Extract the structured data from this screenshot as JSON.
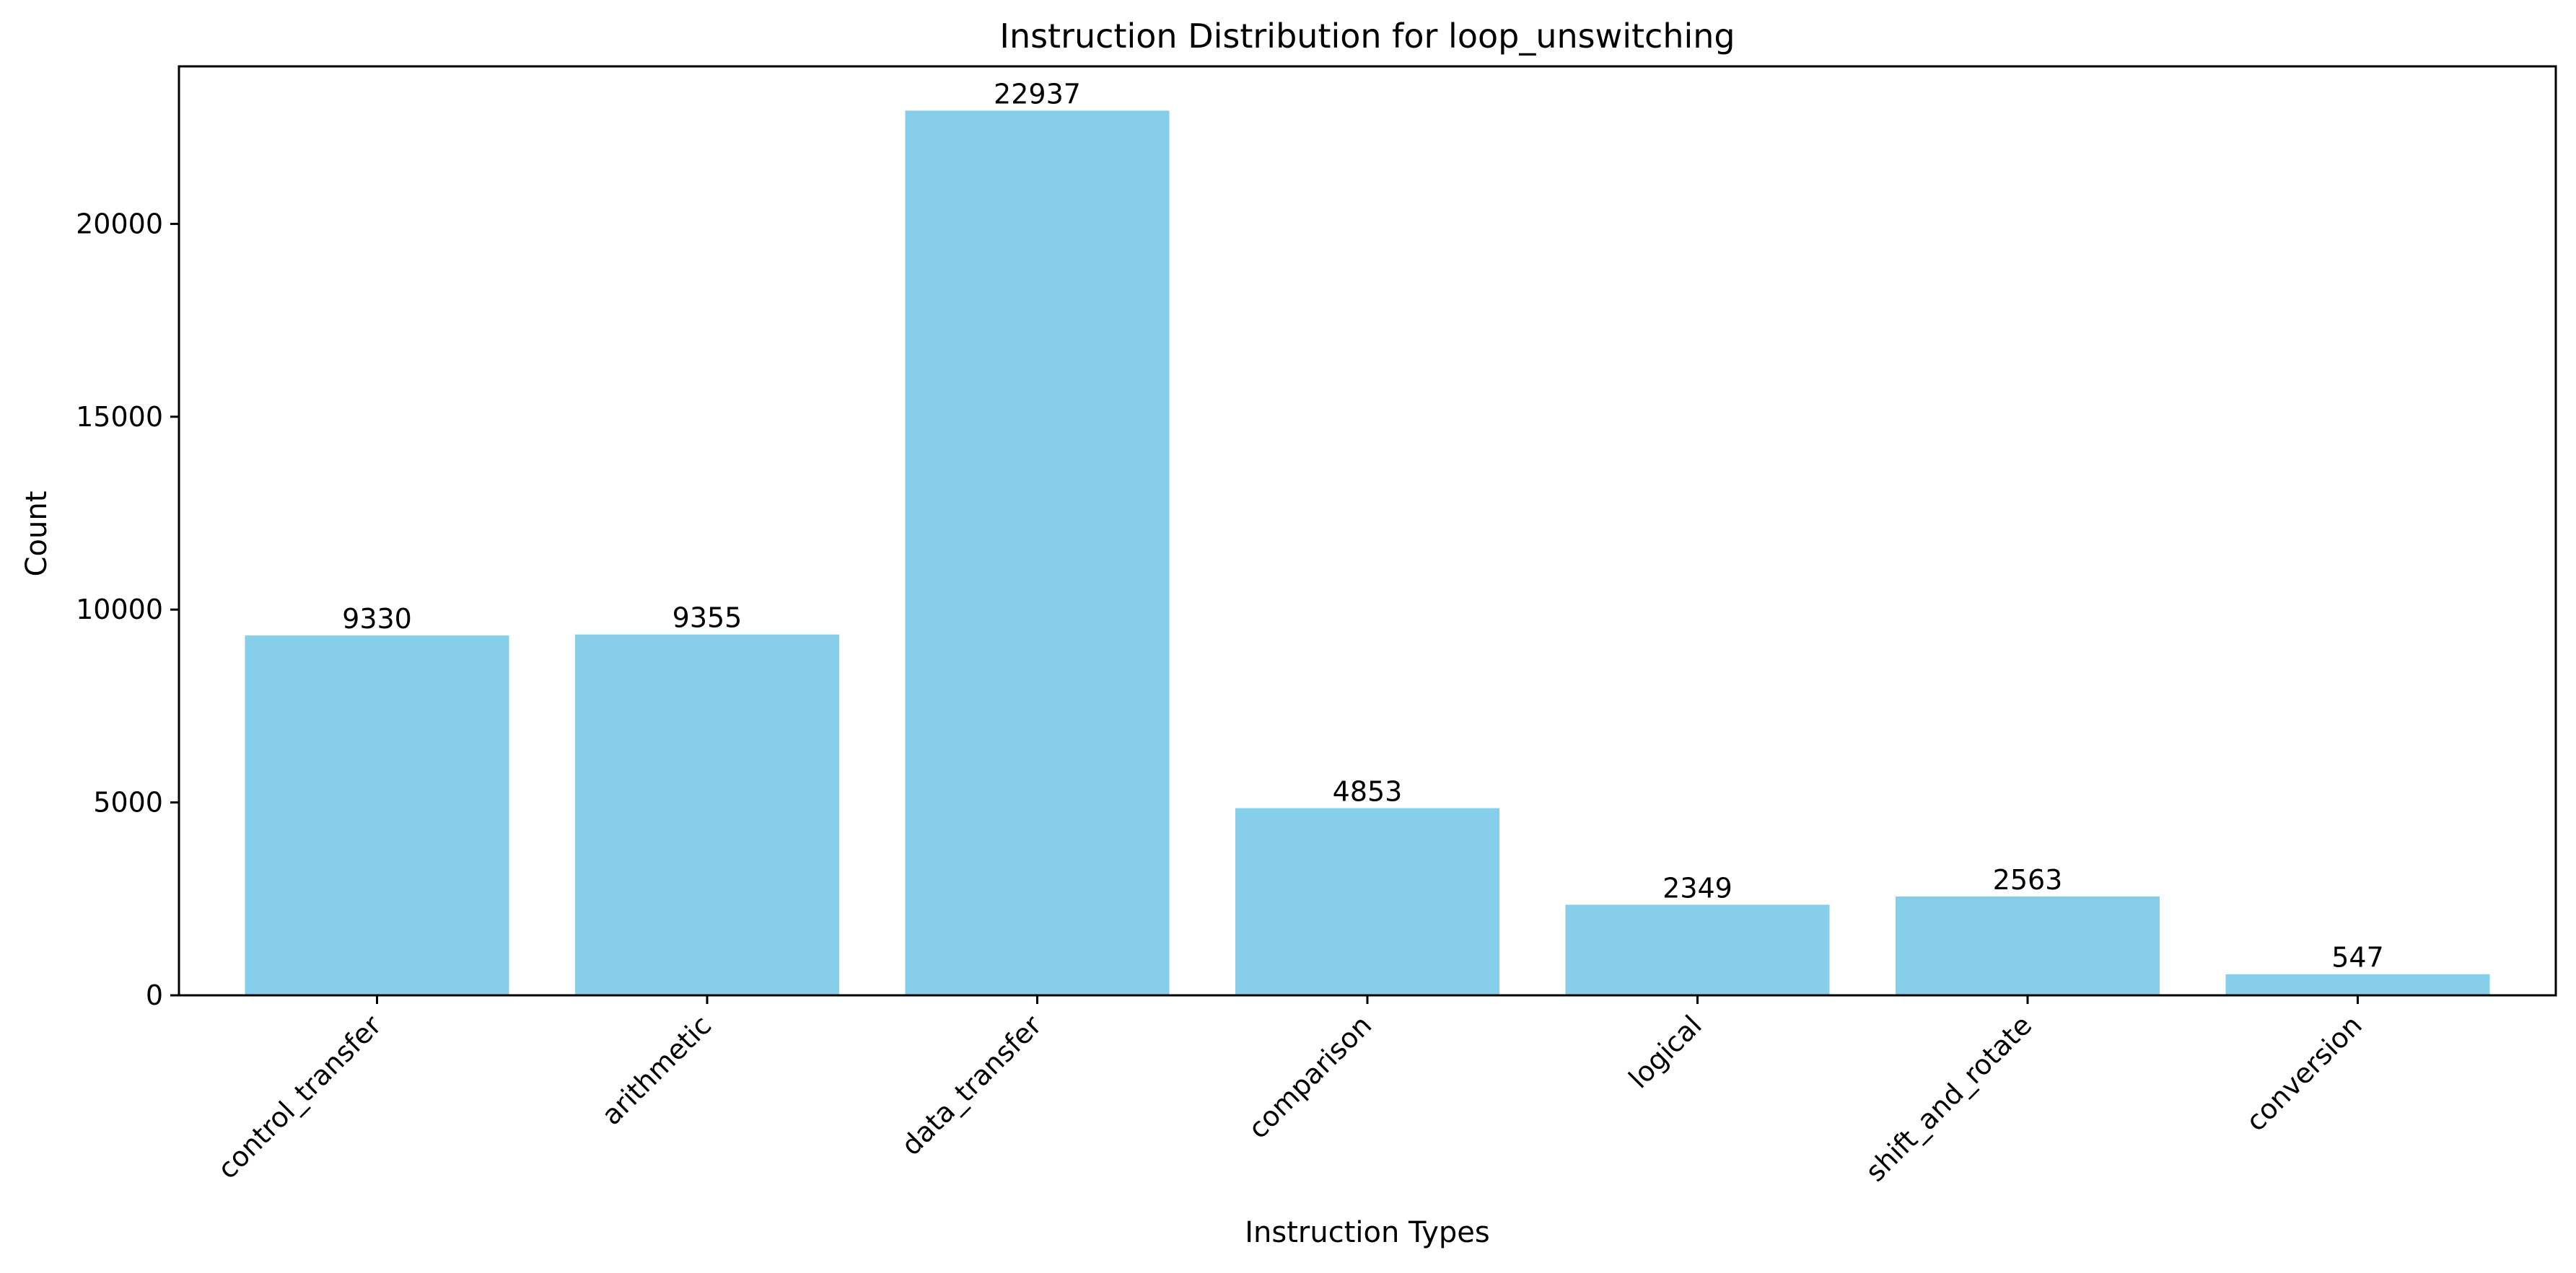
{
  "chart_data": {
    "type": "bar",
    "title": "Instruction Distribution for loop_unswitching",
    "xlabel": "Instruction Types",
    "ylabel": "Count",
    "categories": [
      "control_transfer",
      "arithmetic",
      "data_transfer",
      "comparison",
      "logical",
      "shift_and_rotate",
      "conversion"
    ],
    "values": [
      9330,
      9355,
      22937,
      4853,
      2349,
      2563,
      547
    ],
    "ylim": [
      0,
      24084
    ],
    "yticks": [
      0,
      5000,
      10000,
      15000,
      20000
    ],
    "grid": false,
    "legend": "none",
    "bar_color": "#87CEEB",
    "axis_color": "#000000"
  }
}
